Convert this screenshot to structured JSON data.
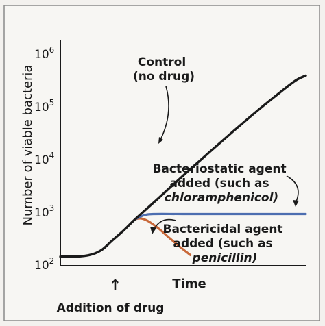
{
  "chart_data": {
    "type": "line",
    "title": "",
    "xlabel": "Time",
    "ylabel": "Number of viable bacteria",
    "yscale": "log",
    "ylim": [
      100,
      1000000
    ],
    "xlim": [
      0,
      10
    ],
    "grid": false,
    "y_ticks": [
      {
        "value": 100,
        "base": "10",
        "exp": "2"
      },
      {
        "value": 1000,
        "base": "10",
        "exp": "3"
      },
      {
        "value": 10000,
        "base": "10",
        "exp": "4"
      },
      {
        "value": 100000,
        "base": "10",
        "exp": "5"
      },
      {
        "value": 1000000,
        "base": "10",
        "exp": "6"
      }
    ],
    "series": [
      {
        "color": "#1a1a1a",
        "points": [
          [
            0,
            140
          ],
          [
            0.8,
            142
          ],
          [
            1.3,
            155
          ],
          [
            1.7,
            190
          ],
          [
            2.1,
            280
          ],
          [
            2.6,
            450
          ],
          [
            3.05,
            720
          ],
          [
            4,
            1800
          ],
          [
            5,
            4800
          ],
          [
            6,
            12500
          ],
          [
            7,
            32000
          ],
          [
            8,
            80000
          ],
          [
            9,
            190000
          ],
          [
            9.6,
            310000
          ],
          [
            10,
            380000
          ]
        ]
      },
      {
        "color": "#4d6eb0",
        "points": [
          [
            3.05,
            720
          ],
          [
            3.4,
            850
          ],
          [
            3.8,
            900
          ],
          [
            5,
            900
          ],
          [
            7,
            900
          ],
          [
            9,
            900
          ],
          [
            10,
            900
          ]
        ]
      },
      {
        "color": "#c9693a",
        "points": [
          [
            3.05,
            720
          ],
          [
            3.3,
            740
          ],
          [
            3.6,
            650
          ],
          [
            4,
            480
          ],
          [
            4.4,
            330
          ],
          [
            4.9,
            210
          ],
          [
            5.3,
            150
          ]
        ]
      }
    ],
    "annotations": [
      {
        "lines": [
          "Control",
          "(no drug)"
        ]
      },
      {
        "lines": [
          "Bacteriostatic agent",
          "added (such as",
          "chloramphenicol)"
        ]
      },
      {
        "lines": [
          "Bactericidal agent",
          "added (such as",
          "penicillin)"
        ]
      },
      {
        "lines": [
          "Addition of drug"
        ]
      }
    ],
    "arrow_glyph": "↑"
  }
}
